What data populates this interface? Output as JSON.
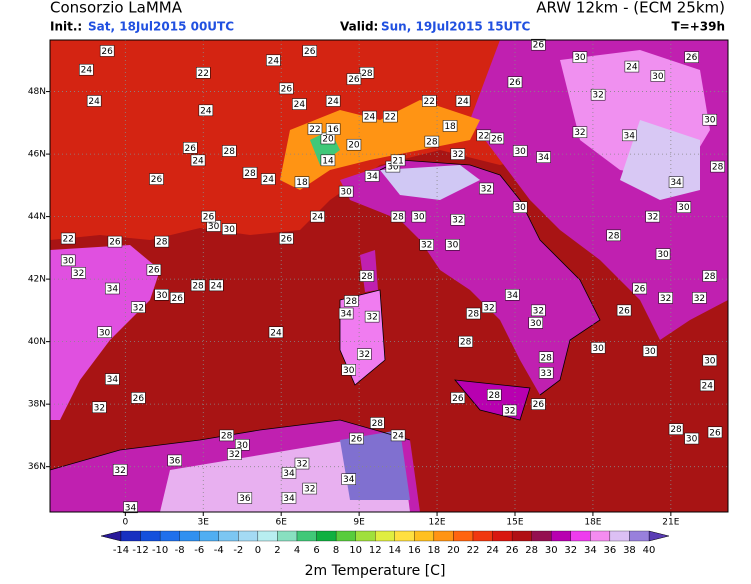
{
  "header": {
    "title": "Consorzio LaMMA",
    "model": "ARW 12km - (ECM 25km)",
    "init_label": "Init.:",
    "init": "Sat, 18Jul2015 00UTC",
    "valid_label": "Valid:",
    "valid": "Sun, 19Jul2015 15UTC",
    "lead": "T=+39h"
  },
  "chart_data": {
    "type": "map",
    "lonlim": [
      -2.9,
      23.2
    ],
    "latlim": [
      34.55,
      49.65
    ],
    "grid": true,
    "lonticks": [
      0,
      {
        "value": 3,
        "label": "3E"
      },
      {
        "value": 6,
        "label": "6E"
      },
      {
        "value": 9,
        "label": "9E"
      },
      {
        "value": 12,
        "label": "12E"
      },
      {
        "value": 15,
        "label": "15E"
      },
      {
        "value": 18,
        "label": "18E"
      },
      {
        "value": 21,
        "label": "21E"
      }
    ],
    "latticks": [
      {
        "value": 36,
        "label": "36N"
      },
      {
        "value": 38,
        "label": "38N"
      },
      {
        "value": 40,
        "label": "40N"
      },
      {
        "value": 42,
        "label": "42N"
      },
      {
        "value": 44,
        "label": "44N"
      },
      {
        "value": 46,
        "label": "46N"
      },
      {
        "value": 48,
        "label": "48N"
      }
    ],
    "stations": [
      {
        "lon": -0.7,
        "lat": 49.3,
        "value": 26
      },
      {
        "lon": -1.5,
        "lat": 48.7,
        "value": 24
      },
      {
        "lon": 3.0,
        "lat": 48.6,
        "value": 22
      },
      {
        "lon": 5.7,
        "lat": 49.0,
        "value": 24
      },
      {
        "lon": 7.1,
        "lat": 49.3,
        "value": 26
      },
      {
        "lon": 9.3,
        "lat": 48.6,
        "value": 28
      },
      {
        "lon": 8.8,
        "lat": 48.4,
        "value": 26
      },
      {
        "lon": -1.2,
        "lat": 47.7,
        "value": 24
      },
      {
        "lon": 3.1,
        "lat": 47.4,
        "value": 24
      },
      {
        "lon": 6.2,
        "lat": 48.1,
        "value": 26
      },
      {
        "lon": 6.7,
        "lat": 47.6,
        "value": 24
      },
      {
        "lon": 8.0,
        "lat": 47.7,
        "value": 24
      },
      {
        "lon": 11.7,
        "lat": 47.7,
        "value": 22
      },
      {
        "lon": 13.0,
        "lat": 47.7,
        "value": 24
      },
      {
        "lon": 15.0,
        "lat": 48.3,
        "value": 26
      },
      {
        "lon": 15.9,
        "lat": 49.5,
        "value": 26
      },
      {
        "lon": 17.5,
        "lat": 49.1,
        "value": 30
      },
      {
        "lon": 19.5,
        "lat": 48.8,
        "value": 24
      },
      {
        "lon": 21.8,
        "lat": 49.1,
        "value": 26
      },
      {
        "lon": 20.5,
        "lat": 48.5,
        "value": 30
      },
      {
        "lon": 18.2,
        "lat": 47.9,
        "value": 32
      },
      {
        "lon": 19.4,
        "lat": 46.6,
        "value": 34
      },
      {
        "lon": 17.5,
        "lat": 46.7,
        "value": 32
      },
      {
        "lon": 22.5,
        "lat": 47.1,
        "value": 30
      },
      {
        "lon": 22.8,
        "lat": 45.6,
        "value": 28
      },
      {
        "lon": 21.2,
        "lat": 45.1,
        "value": 34
      },
      {
        "lon": 21.5,
        "lat": 44.3,
        "value": 30
      },
      {
        "lon": 20.3,
        "lat": 44.0,
        "value": 32
      },
      {
        "lon": 18.8,
        "lat": 43.4,
        "value": 28
      },
      {
        "lon": 20.7,
        "lat": 42.8,
        "value": 30
      },
      {
        "lon": 22.5,
        "lat": 42.1,
        "value": 28
      },
      {
        "lon": 19.8,
        "lat": 41.7,
        "value": 26
      },
      {
        "lon": 20.8,
        "lat": 41.4,
        "value": 32
      },
      {
        "lon": 19.2,
        "lat": 41.0,
        "value": 26
      },
      {
        "lon": 22.1,
        "lat": 41.4,
        "value": 32
      },
      {
        "lon": 22.5,
        "lat": 39.4,
        "value": 30
      },
      {
        "lon": 22.4,
        "lat": 38.6,
        "value": 24
      },
      {
        "lon": 22.7,
        "lat": 37.1,
        "value": 26
      },
      {
        "lon": 21.2,
        "lat": 37.2,
        "value": 28
      },
      {
        "lon": 21.8,
        "lat": 36.9,
        "value": 30
      },
      {
        "lon": 20.2,
        "lat": 39.7,
        "value": 30
      },
      {
        "lon": 18.2,
        "lat": 39.8,
        "value": 30
      },
      {
        "lon": 16.2,
        "lat": 39.5,
        "value": 28
      },
      {
        "lon": 16.2,
        "lat": 39.0,
        "value": 33
      },
      {
        "lon": 15.9,
        "lat": 38.0,
        "value": 26
      },
      {
        "lon": 14.8,
        "lat": 37.8,
        "value": 32
      },
      {
        "lon": 14.2,
        "lat": 38.3,
        "value": 28
      },
      {
        "lon": 12.8,
        "lat": 38.2,
        "value": 26
      },
      {
        "lon": 13.1,
        "lat": 40.0,
        "value": 28
      },
      {
        "lon": 15.9,
        "lat": 41.0,
        "value": 32
      },
      {
        "lon": 15.8,
        "lat": 40.6,
        "value": 30
      },
      {
        "lon": 14.9,
        "lat": 41.5,
        "value": 34
      },
      {
        "lon": 13.4,
        "lat": 40.9,
        "value": 28
      },
      {
        "lon": 14.0,
        "lat": 41.1,
        "value": 32
      },
      {
        "lon": 12.6,
        "lat": 43.1,
        "value": 30
      },
      {
        "lon": 11.6,
        "lat": 43.1,
        "value": 32
      },
      {
        "lon": 9.3,
        "lat": 42.1,
        "value": 28
      },
      {
        "lon": 8.7,
        "lat": 41.3,
        "value": 28
      },
      {
        "lon": 8.5,
        "lat": 40.9,
        "value": 34
      },
      {
        "lon": 9.5,
        "lat": 40.8,
        "value": 32
      },
      {
        "lon": 9.2,
        "lat": 39.6,
        "value": 32
      },
      {
        "lon": 8.6,
        "lat": 39.1,
        "value": 30
      },
      {
        "lon": 10.5,
        "lat": 44.0,
        "value": 28
      },
      {
        "lon": 11.3,
        "lat": 44.0,
        "value": 30
      },
      {
        "lon": 12.8,
        "lat": 43.9,
        "value": 32
      },
      {
        "lon": 13.9,
        "lat": 44.9,
        "value": 32
      },
      {
        "lon": 15.2,
        "lat": 44.3,
        "value": 30
      },
      {
        "lon": 16.1,
        "lat": 45.9,
        "value": 34
      },
      {
        "lon": 15.2,
        "lat": 46.1,
        "value": 30
      },
      {
        "lon": 12.8,
        "lat": 46.0,
        "value": 32
      },
      {
        "lon": 10.3,
        "lat": 45.6,
        "value": 30
      },
      {
        "lon": 8.5,
        "lat": 44.8,
        "value": 30
      },
      {
        "lon": 9.5,
        "lat": 45.3,
        "value": 34
      },
      {
        "lon": 7.4,
        "lat": 44.0,
        "value": 24
      },
      {
        "lon": 6.2,
        "lat": 43.3,
        "value": 26
      },
      {
        "lon": 3.4,
        "lat": 43.7,
        "value": 30
      },
      {
        "lon": 3.2,
        "lat": 44.0,
        "value": 26
      },
      {
        "lon": 4.0,
        "lat": 43.6,
        "value": 30
      },
      {
        "lon": 1.2,
        "lat": 45.2,
        "value": 26
      },
      {
        "lon": 2.5,
        "lat": 46.2,
        "value": 26
      },
      {
        "lon": 2.8,
        "lat": 45.8,
        "value": 24
      },
      {
        "lon": 4.0,
        "lat": 46.1,
        "value": 28
      },
      {
        "lon": 4.8,
        "lat": 45.4,
        "value": 28
      },
      {
        "lon": 5.5,
        "lat": 45.2,
        "value": 24
      },
      {
        "lon": 6.8,
        "lat": 45.1,
        "value": 18
      },
      {
        "lon": 7.8,
        "lat": 46.5,
        "value": 20
      },
      {
        "lon": 7.3,
        "lat": 46.8,
        "value": 22
      },
      {
        "lon": 8.0,
        "lat": 46.8,
        "value": 16
      },
      {
        "lon": 7.8,
        "lat": 45.8,
        "value": 14
      },
      {
        "lon": 8.8,
        "lat": 46.3,
        "value": 20
      },
      {
        "lon": 10.5,
        "lat": 45.8,
        "value": 21
      },
      {
        "lon": 9.4,
        "lat": 47.2,
        "value": 24
      },
      {
        "lon": 10.2,
        "lat": 47.2,
        "value": 22
      },
      {
        "lon": 12.5,
        "lat": 46.9,
        "value": 18
      },
      {
        "lon": 13.8,
        "lat": 46.6,
        "value": 22
      },
      {
        "lon": 14.3,
        "lat": 46.5,
        "value": 26
      },
      {
        "lon": 11.8,
        "lat": 46.4,
        "value": 28
      },
      {
        "lon": -2.2,
        "lat": 42.6,
        "value": 30
      },
      {
        "lon": -1.8,
        "lat": 42.2,
        "value": 32
      },
      {
        "lon": -2.2,
        "lat": 43.3,
        "value": 22
      },
      {
        "lon": -0.4,
        "lat": 43.2,
        "value": 26
      },
      {
        "lon": 1.4,
        "lat": 43.2,
        "value": 28
      },
      {
        "lon": 1.1,
        "lat": 42.3,
        "value": 26
      },
      {
        "lon": -0.5,
        "lat": 41.7,
        "value": 34
      },
      {
        "lon": 1.4,
        "lat": 41.5,
        "value": 30
      },
      {
        "lon": 2.0,
        "lat": 41.4,
        "value": 26
      },
      {
        "lon": 2.8,
        "lat": 41.8,
        "value": 28
      },
      {
        "lon": 3.5,
        "lat": 41.8,
        "value": 24
      },
      {
        "lon": 0.5,
        "lat": 41.1,
        "value": 32
      },
      {
        "lon": -0.8,
        "lat": 40.3,
        "value": 30
      },
      {
        "lon": 5.8,
        "lat": 40.3,
        "value": 24
      },
      {
        "lon": -0.5,
        "lat": 38.8,
        "value": 34
      },
      {
        "lon": 0.5,
        "lat": 38.2,
        "value": 26
      },
      {
        "lon": -1.0,
        "lat": 37.9,
        "value": 32
      },
      {
        "lon": 3.9,
        "lat": 37.0,
        "value": 28
      },
      {
        "lon": 4.5,
        "lat": 36.7,
        "value": 30
      },
      {
        "lon": 4.2,
        "lat": 36.4,
        "value": 32
      },
      {
        "lon": 1.9,
        "lat": 36.2,
        "value": 36
      },
      {
        "lon": 6.8,
        "lat": 36.1,
        "value": 32
      },
      {
        "lon": 6.3,
        "lat": 35.8,
        "value": 34
      },
      {
        "lon": 7.1,
        "lat": 35.3,
        "value": 32
      },
      {
        "lon": 8.6,
        "lat": 35.6,
        "value": 34
      },
      {
        "lon": 4.6,
        "lat": 35.0,
        "value": 36
      },
      {
        "lon": 6.3,
        "lat": 35.0,
        "value": 34
      },
      {
        "lon": -0.2,
        "lat": 35.9,
        "value": 32
      },
      {
        "lon": 9.7,
        "lat": 37.4,
        "value": 28
      },
      {
        "lon": 8.9,
        "lat": 36.9,
        "value": 26
      },
      {
        "lon": 10.5,
        "lat": 37.0,
        "value": 24
      },
      {
        "lon": 0.2,
        "lat": 34.7,
        "value": 34
      }
    ],
    "colorbar": {
      "label": "2m Temperature [C]",
      "ticks": [
        -14,
        -12,
        -10,
        -8,
        -6,
        -4,
        -2,
        0,
        2,
        4,
        6,
        8,
        10,
        12,
        14,
        16,
        18,
        20,
        22,
        24,
        26,
        28,
        30,
        32,
        34,
        36,
        38,
        40
      ],
      "under": "#2a1a9a",
      "over": "#5a3cb4",
      "colors": [
        "#1830c0",
        "#1450dc",
        "#2070ec",
        "#3090f0",
        "#50aef2",
        "#7cc6f2",
        "#a4daf4",
        "#b8eef0",
        "#88e0c0",
        "#40c878",
        "#10b040",
        "#58cc3c",
        "#a0e03c",
        "#e0ee40",
        "#ffe040",
        "#ffc020",
        "#ff9414",
        "#ff6410",
        "#f03810",
        "#d81810",
        "#b01014",
        "#941050",
        "#b800b0",
        "#ee3cee",
        "#f48cf0",
        "#dcc0f4",
        "#9880dc"
      ]
    }
  }
}
